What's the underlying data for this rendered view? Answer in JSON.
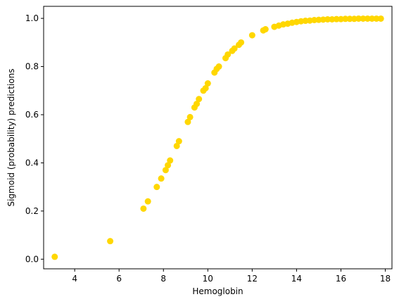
{
  "chart_data": {
    "type": "scatter",
    "title": "",
    "xlabel": "Hemoglobin",
    "ylabel": "Sigmoid (probability) predictions",
    "xlim": [
      2.6,
      18.3
    ],
    "ylim": [
      -0.04,
      1.05
    ],
    "xticks": [
      4,
      6,
      8,
      10,
      12,
      14,
      16,
      18
    ],
    "yticks": [
      0.0,
      0.2,
      0.4,
      0.6,
      0.8,
      1.0
    ],
    "ytick_labels": [
      "0.0",
      "0.2",
      "0.4",
      "0.6",
      "0.8",
      "1.0"
    ],
    "grid": false,
    "marker_color": "#ffd700",
    "series": [
      {
        "x": [
          3.1,
          5.6,
          7.1,
          7.3,
          7.7,
          7.9,
          8.1,
          8.2,
          8.3,
          8.6,
          8.7,
          9.1,
          9.2,
          9.4,
          9.5,
          9.6,
          9.8,
          9.9,
          10.0,
          10.3,
          10.4,
          10.5,
          10.8,
          10.9,
          11.1,
          11.2,
          11.4,
          11.5,
          12.0,
          12.5,
          12.6,
          13.0,
          13.2,
          13.4,
          13.6,
          13.8,
          14.0,
          14.2,
          14.4,
          14.6,
          14.8,
          15.0,
          15.2,
          15.4,
          15.6,
          15.8,
          16.0,
          16.2,
          16.4,
          16.6,
          16.8,
          17.0,
          17.2,
          17.4,
          17.6,
          17.8
        ],
        "y": [
          0.01,
          0.075,
          0.21,
          0.24,
          0.3,
          0.335,
          0.37,
          0.39,
          0.41,
          0.47,
          0.49,
          0.57,
          0.59,
          0.63,
          0.645,
          0.665,
          0.7,
          0.71,
          0.73,
          0.775,
          0.79,
          0.8,
          0.835,
          0.85,
          0.865,
          0.875,
          0.89,
          0.9,
          0.93,
          0.95,
          0.955,
          0.965,
          0.97,
          0.975,
          0.978,
          0.982,
          0.985,
          0.988,
          0.99,
          0.991,
          0.993,
          0.994,
          0.995,
          0.996,
          0.996,
          0.997,
          0.997,
          0.998,
          0.998,
          0.998,
          0.999,
          0.999,
          0.999,
          0.999,
          0.999,
          0.999
        ]
      }
    ]
  }
}
